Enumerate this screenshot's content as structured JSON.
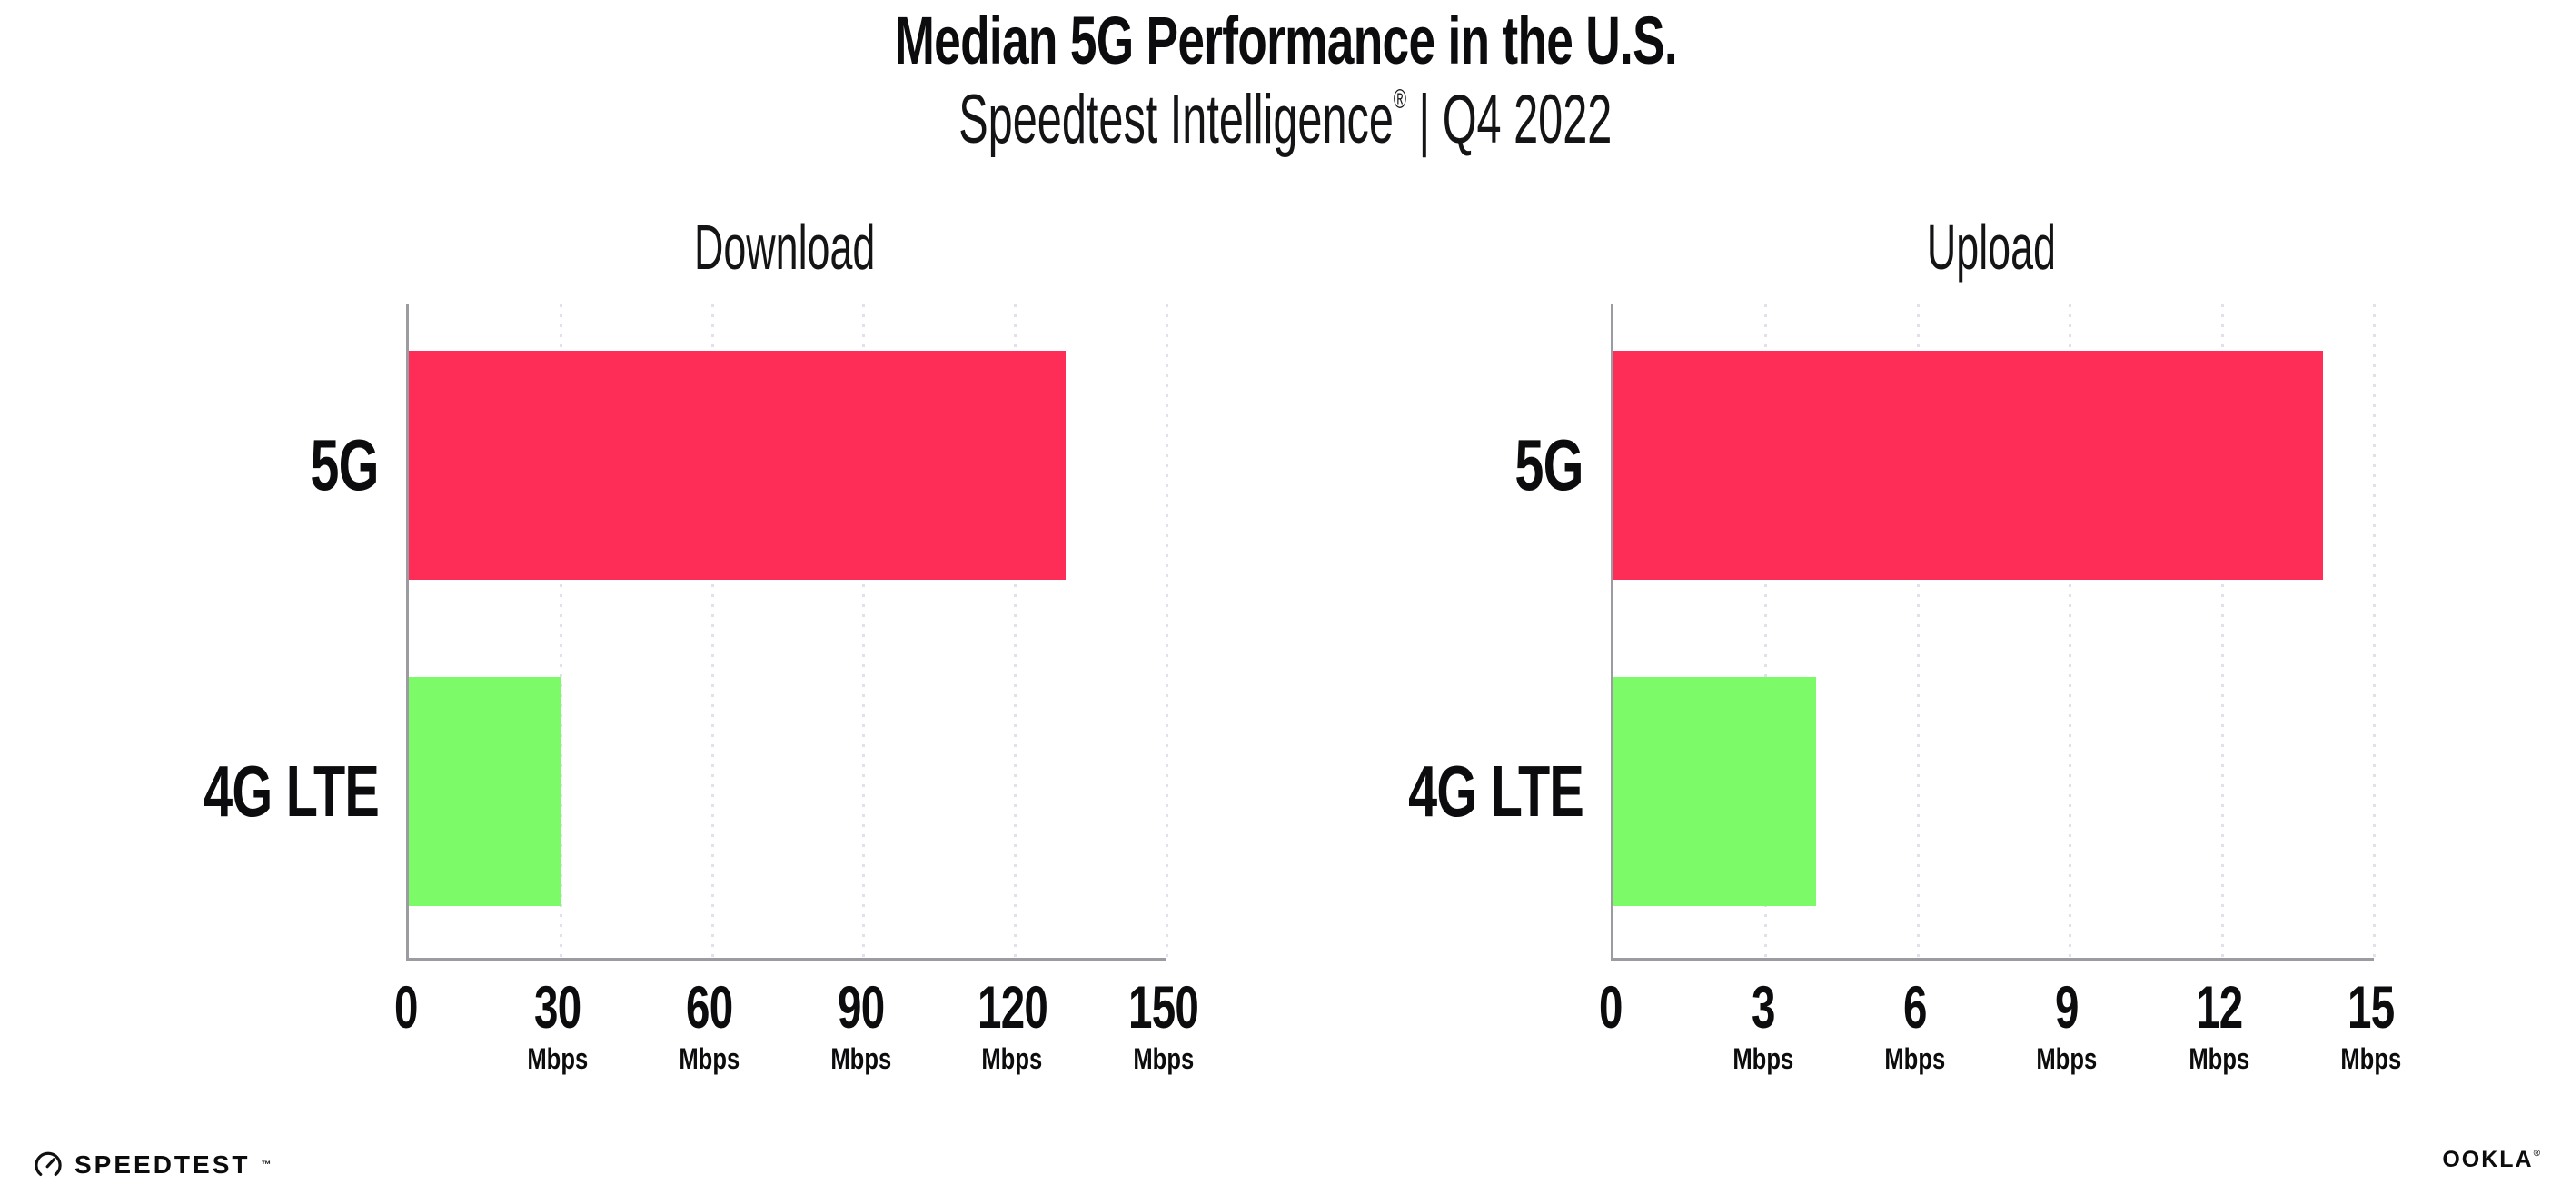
{
  "page": {
    "background": "#ffffff"
  },
  "header": {
    "title": "Median 5G Performance in the U.S.",
    "subtitle_brand": "Speedtest Intelligence",
    "subtitle_reg": "®",
    "subtitle_rest": " | Q4 2022"
  },
  "colors": {
    "bar_5g": "#fd2d58",
    "bar_4g_lte": "#7dfa68",
    "gridline": "#e1e1eb",
    "axis": "#9b9ba1",
    "text": "#0c0c0e"
  },
  "chart_data": [
    {
      "type": "bar",
      "orientation": "horizontal",
      "title": "Download",
      "categories": [
        "5G",
        "4G LTE"
      ],
      "values": [
        130,
        30
      ],
      "unit": "Mbps",
      "xlim": [
        0,
        150
      ],
      "xticks": [
        0,
        30,
        60,
        90,
        120,
        150
      ],
      "bar_colors": [
        "#fd2d58",
        "#7dfa68"
      ],
      "grid": "vertical-dotted",
      "legend": "none"
    },
    {
      "type": "bar",
      "orientation": "horizontal",
      "title": "Upload",
      "categories": [
        "5G",
        "4G LTE"
      ],
      "values": [
        14,
        4
      ],
      "unit": "Mbps",
      "xlim": [
        0,
        15
      ],
      "xticks": [
        0,
        3,
        6,
        9,
        12,
        15
      ],
      "bar_colors": [
        "#fd2d58",
        "#7dfa68"
      ],
      "grid": "vertical-dotted",
      "legend": "none"
    }
  ],
  "footer": {
    "speedtest_label": "SPEEDTEST",
    "speedtest_tm": "™",
    "gauge_icon": "speedometer-gauge",
    "ookla_label": "OOKLA",
    "ookla_reg": "®"
  }
}
